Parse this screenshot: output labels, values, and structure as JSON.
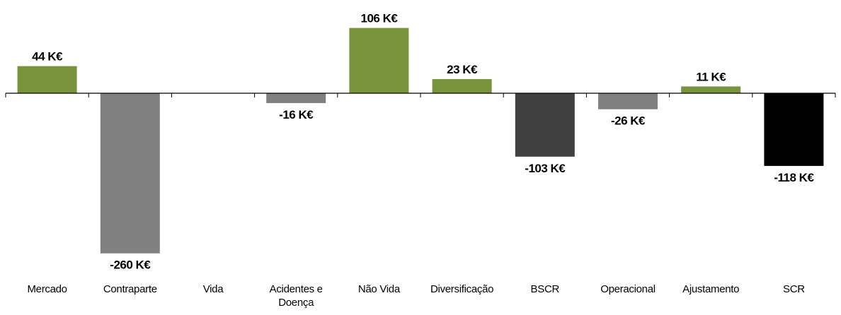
{
  "chart_data": {
    "type": "bar",
    "categories": [
      "Mercado",
      "Contraparte",
      "Vida",
      "Acidentes e Doença",
      "Não Vida",
      "Diversificação",
      "BSCR",
      "Operacional",
      "Ajustamento",
      "SCR"
    ],
    "values": [
      44,
      -260,
      null,
      -16,
      106,
      23,
      -103,
      -26,
      11,
      -118
    ],
    "value_labels": [
      "44 K€",
      "-260 K€",
      null,
      "-16 K€",
      "106 K€",
      "23 K€",
      "-103 K€",
      "-26 K€",
      "11 K€",
      "-118 K€"
    ],
    "colors": [
      "#77933c",
      "#808080",
      "#808080",
      "#808080",
      "#77933c",
      "#77933c",
      "#404040",
      "#808080",
      "#77933c",
      "#000000"
    ]
  }
}
